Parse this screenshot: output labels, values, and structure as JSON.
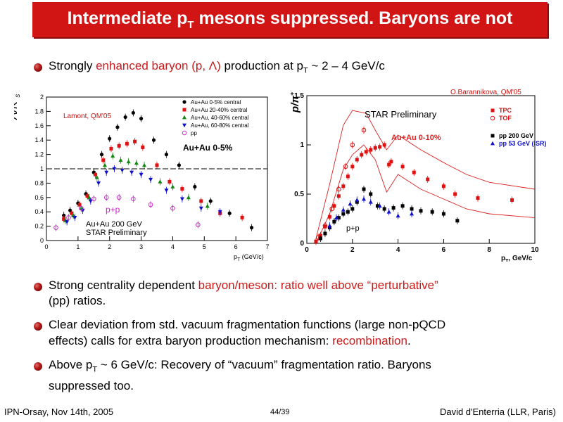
{
  "slide": {
    "title_prefix": "Intermediate p",
    "title_sub": "T",
    "title_suffix": " mesons suppressed. Baryons are not",
    "bullet1": {
      "a": "Strongly ",
      "b": "enhanced baryon (p, Λ)",
      "c": " production at p",
      "d": "T",
      "e": " ~ 2 – 4 GeV/c"
    },
    "bullet2": {
      "a": "Strong centrality dependent ",
      "b": "baryon/meson: ratio well above “perturbative”",
      "c": "(pp) ratios."
    },
    "bullet3": {
      "l1": "Clear deviation from std. vacuum fragmentation functions (large non-pQCD",
      "l2a": "effects) calls for extra baryon production mechanism: ",
      "l2b": "recombination",
      "l2c": "."
    },
    "bullet4": {
      "a": "Above p",
      "b": "T",
      "c": " ~ 6 GeV/c: Recovery of “vacuum” fragmentation ratio. Baryons",
      "l2": "suppressed too."
    },
    "footer_left": "IPN-Orsay, Nov 14th, 2005",
    "footer_center": "44/39",
    "footer_right": "David d'Enterria (LLR, Paris)"
  },
  "chart_data": [
    {
      "type": "scatter",
      "ylabel_main": "Λ/K",
      "ylabel_sup": "0",
      "ylabel_sub": "s",
      "xlabel": "p",
      "xlabel_sub": "T",
      "xlabel_unit": " (GeV/c)",
      "xlim": [
        0,
        7
      ],
      "ylim": [
        0,
        2
      ],
      "xticks": [
        "0",
        "1",
        "2",
        "3",
        "4",
        "5",
        "6",
        "7"
      ],
      "yticks": [
        "0",
        "0.2",
        "0.4",
        "0.6",
        "0.8",
        "1",
        "1.2",
        "1.4",
        "1.6",
        "1.8",
        "2"
      ],
      "credit": "Lamont, QM'05",
      "system_label": "Au+Au 0-5%",
      "pp_label": "p+p",
      "bottom_label_1": "Au+Au 200 GeV",
      "bottom_label_2": "STAR Preliminary",
      "reference_line_y": 1,
      "grid": false,
      "legend_position": "top-right",
      "colors": {
        "c1": "#000000",
        "c2": "#dd1111",
        "c3": "#118811",
        "c4": "#1111cc",
        "c5": "#cc33cc"
      },
      "series": [
        {
          "name": "Au+Au 0-5% central",
          "marker": "circle",
          "color": "c1",
          "x": [
            0.55,
            0.75,
            1.0,
            1.25,
            1.5,
            1.75,
            2.0,
            2.25,
            2.5,
            2.75,
            3.0,
            3.4,
            3.8,
            4.2,
            4.7,
            5.2,
            5.8,
            6.5
          ],
          "y": [
            0.35,
            0.42,
            0.52,
            0.65,
            0.95,
            1.2,
            1.42,
            1.58,
            1.72,
            1.78,
            1.7,
            1.4,
            1.2,
            1.05,
            0.75,
            0.55,
            0.38,
            0.18
          ]
        },
        {
          "name": "Au+Au 20-40% central",
          "marker": "square",
          "color": "c2",
          "x": [
            0.55,
            0.8,
            1.05,
            1.3,
            1.55,
            1.8,
            2.05,
            2.3,
            2.55,
            2.8,
            3.05,
            3.5,
            3.9,
            4.3,
            4.9,
            5.5,
            6.2
          ],
          "y": [
            0.3,
            0.38,
            0.5,
            0.62,
            0.92,
            1.12,
            1.28,
            1.32,
            1.35,
            1.38,
            1.3,
            1.05,
            0.82,
            0.72,
            0.55,
            0.38,
            0.32
          ]
        },
        {
          "name": "Au+Au, 40-60% central",
          "marker": "triangle-up",
          "color": "c3",
          "x": [
            0.6,
            0.85,
            1.1,
            1.35,
            1.6,
            1.85,
            2.1,
            2.35,
            2.6,
            2.85,
            3.1,
            3.6,
            4.0,
            4.5,
            5.1
          ],
          "y": [
            0.28,
            0.35,
            0.45,
            0.6,
            0.88,
            1.05,
            1.18,
            1.12,
            1.1,
            1.08,
            1.05,
            0.82,
            0.75,
            0.6,
            0.48
          ]
        },
        {
          "name": "Au+Au, 60-80% central",
          "marker": "triangle-down",
          "color": "c4",
          "x": [
            0.65,
            0.9,
            1.15,
            1.4,
            1.65,
            1.9,
            2.15,
            2.4,
            2.7,
            3.0,
            3.3,
            3.8,
            4.3,
            4.9,
            5.5
          ],
          "y": [
            0.26,
            0.32,
            0.42,
            0.55,
            0.8,
            0.95,
            1.0,
            0.98,
            0.95,
            0.92,
            0.85,
            0.7,
            0.58,
            0.45,
            0.4
          ]
        },
        {
          "name": "pp",
          "marker": "open-circle",
          "color": "c5",
          "x": [
            0.3,
            0.7,
            1.1,
            1.5,
            1.9,
            2.3,
            2.75,
            3.3,
            4.0,
            4.8
          ],
          "y": [
            0.18,
            0.32,
            0.45,
            0.58,
            0.6,
            0.6,
            0.58,
            0.5,
            0.45,
            0.22
          ]
        }
      ]
    },
    {
      "type": "scatter",
      "ylabel_main": "p/π",
      "ylabel_sup": "+",
      "xlabel": "p",
      "xlabel_sub": "T",
      "xlabel_unit": ", GeV/c",
      "xlim": [
        0,
        10
      ],
      "ylim": [
        0,
        1.5
      ],
      "xticks": [
        "0",
        "2",
        "4",
        "6",
        "8",
        "10"
      ],
      "yticks": [
        "0",
        "0.5",
        "1",
        "1.5"
      ],
      "credit": "O.Barannikova, QM'05",
      "header_label": "STAR Preliminary",
      "system_label": "Au+Au 0-10%",
      "pp_label": "p+p",
      "grid": false,
      "legend_position": "top-right",
      "colors": {
        "c1": "#dd1111",
        "c2": "#000000",
        "c3": "#1111cc",
        "band": "#dd2222"
      },
      "series": [
        {
          "name": "TPC",
          "marker": "square",
          "color": "c1",
          "x": [
            0.4,
            0.6,
            0.8,
            1.0,
            1.2,
            1.4,
            1.6,
            1.8,
            2.0,
            2.2,
            2.4,
            2.6,
            2.8,
            3.0,
            3.2,
            3.4,
            3.7,
            4.2,
            4.7,
            5.3,
            6.0
          ],
          "y": [
            0.02,
            0.08,
            0.17,
            0.27,
            0.38,
            0.48,
            0.58,
            0.68,
            0.78,
            0.85,
            0.9,
            0.93,
            0.95,
            0.97,
            0.98,
            1.0,
            0.83,
            0.78,
            0.72,
            0.65,
            0.58
          ]
        },
        {
          "name": "TOF",
          "marker": "open-circle",
          "color": "c1",
          "x": [
            0.5,
            0.8,
            1.1,
            1.4,
            1.7,
            2.0,
            2.5
          ],
          "y": [
            0.06,
            0.18,
            0.35,
            0.55,
            0.78,
            1.0,
            1.15
          ]
        },
        {
          "name": "Au+Au 0-10% (large-bin)",
          "marker": "square",
          "color": "c1",
          "x": [
            3.6,
            6.5,
            7.5,
            9.0
          ],
          "y": [
            0.8,
            0.5,
            0.46,
            0.44
          ]
        },
        {
          "name": "pp 200 GeV",
          "marker": "square",
          "color": "c2",
          "x": [
            0.6,
            0.8,
            1.0,
            1.2,
            1.4,
            1.6,
            1.8,
            2.0,
            2.2,
            2.5,
            2.8,
            3.1,
            3.4,
            3.8,
            4.2,
            4.6,
            5.0,
            5.5,
            6.0,
            6.6
          ],
          "y": [
            0.05,
            0.1,
            0.16,
            0.22,
            0.26,
            0.3,
            0.32,
            0.35,
            0.42,
            0.55,
            0.5,
            0.38,
            0.35,
            0.36,
            0.38,
            0.35,
            0.33,
            0.32,
            0.3,
            0.23
          ]
        },
        {
          "name": "pp 53 GeV (ISR)",
          "marker": "triangle-up",
          "color": "c3",
          "x": [
            1.0,
            1.3,
            1.6,
            1.9,
            2.2,
            2.5,
            2.8,
            3.2,
            3.6,
            4.0,
            4.6
          ],
          "y": [
            0.18,
            0.26,
            0.34,
            0.4,
            0.44,
            0.45,
            0.42,
            0.38,
            0.32,
            0.28,
            0.3
          ]
        }
      ]
    }
  ]
}
